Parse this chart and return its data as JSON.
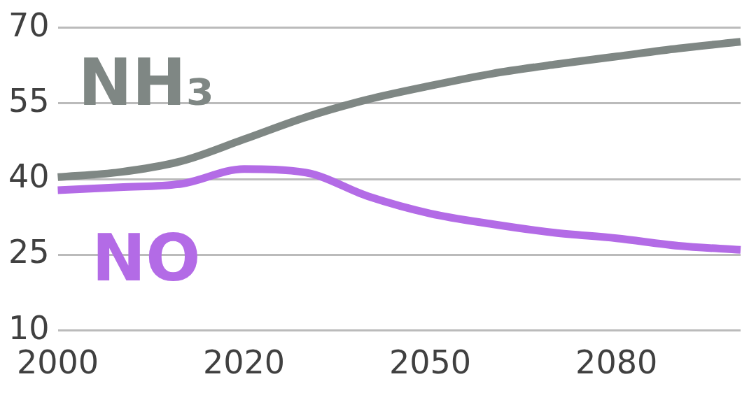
{
  "chart_data": {
    "type": "line",
    "categories": [
      "2000",
      null,
      null,
      "2020",
      null,
      null,
      "2050",
      null,
      null,
      "2080",
      null,
      null
    ],
    "series": [
      {
        "name": "NH₃",
        "color": "#7f8784",
        "values": [
          40.4,
          41.4,
          43.6,
          47.9,
          52.3,
          55.8,
          58.5,
          60.9,
          62.7,
          64.3,
          65.9,
          67.2
        ]
      },
      {
        "name": "NO",
        "color": "#b36be6",
        "values": [
          37.8,
          38.4,
          39.1,
          42,
          41.3,
          36.6,
          33.2,
          31.1,
          29.4,
          28.3,
          26.8,
          26
        ]
      }
    ],
    "ylim": [
      10,
      70
    ],
    "yticks": [
      10,
      25,
      40,
      55,
      70
    ],
    "grid": "y",
    "legend": false,
    "marker": "none",
    "line_style": "solid"
  }
}
